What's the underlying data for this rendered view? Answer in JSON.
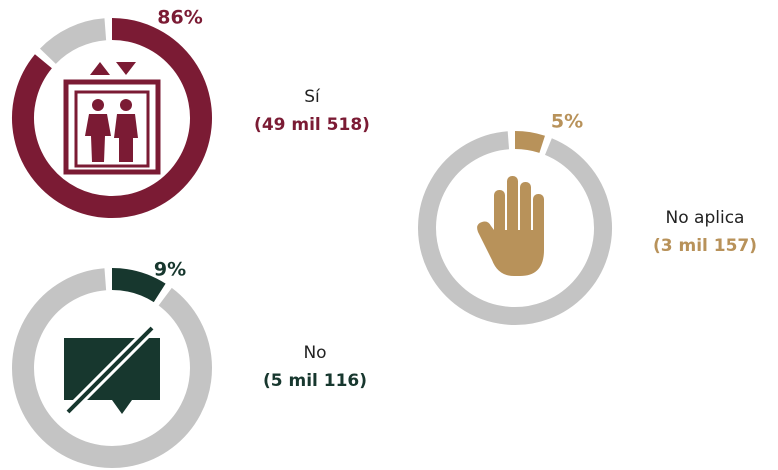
{
  "chart_data": [
    {
      "type": "donut",
      "categories": [
        "Sí"
      ],
      "values": [
        86
      ],
      "value_labels": [
        "86%"
      ],
      "color": "#7b1b34",
      "annotation": "(49 mil 518)"
    },
    {
      "type": "donut",
      "categories": [
        "No aplica"
      ],
      "values": [
        5
      ],
      "value_labels": [
        "5%"
      ],
      "color": "#b8925a",
      "annotation": "(3 mil 157)"
    },
    {
      "type": "donut",
      "categories": [
        "No"
      ],
      "values": [
        9
      ],
      "value_labels": [
        "9%"
      ],
      "color": "#17372e",
      "annotation": "(5 mil 116)"
    }
  ]
}
